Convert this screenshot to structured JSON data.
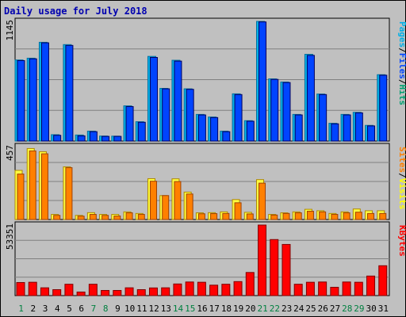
{
  "title": "Daily usage for July 2018",
  "colors": {
    "pages": "#00b0e8",
    "files": "#0044ff",
    "hits": "#00a070",
    "sites": "#ff8000",
    "visits": "#ffff00",
    "kbytes": "#ff0000",
    "weekend_day": "#008040",
    "weekday_day": "#000000"
  },
  "chart_data": [
    {
      "type": "bar",
      "name": "hits-files-pages",
      "ymax_label": "1145",
      "ylim": [
        0,
        1145
      ],
      "legend_right": [
        {
          "text": "Pages",
          "color": "#00b0e8"
        },
        {
          "text": "/",
          "color": "#000000"
        },
        {
          "text": "Files",
          "color": "#0044ff"
        },
        {
          "text": "/",
          "color": "#000000"
        },
        {
          "text": "Hits",
          "color": "#00a070"
        }
      ],
      "categories": [
        "1",
        "2",
        "3",
        "4",
        "5",
        "6",
        "7",
        "8",
        "9",
        "10",
        "11",
        "12",
        "13",
        "14",
        "15",
        "16",
        "17",
        "18",
        "19",
        "20",
        "21",
        "22",
        "23",
        "24",
        "25",
        "26",
        "27",
        "28",
        "29",
        "30",
        "31"
      ],
      "series": [
        {
          "name": "Hits",
          "values": [
            776,
            793,
            945,
            61,
            923,
            58,
            95,
            48,
            47,
            337,
            185,
            810,
            504,
            773,
            500,
            255,
            230,
            95,
            452,
            195,
            1145,
            595,
            565,
            255,
            830,
            450,
            170,
            255,
            275,
            150,
            635
          ]
        },
        {
          "name": "Files",
          "values": [
            770,
            787,
            940,
            55,
            915,
            50,
            90,
            45,
            45,
            330,
            180,
            800,
            500,
            765,
            495,
            250,
            225,
            90,
            445,
            190,
            1140,
            590,
            560,
            250,
            820,
            445,
            165,
            250,
            270,
            145,
            630
          ]
        }
      ]
    },
    {
      "type": "bar",
      "name": "visits-sites",
      "ymax_label": "457",
      "ylim": [
        0,
        457
      ],
      "legend_right": [
        {
          "text": "Sites",
          "color": "#ff8000"
        },
        {
          "text": "/",
          "color": "#000000"
        },
        {
          "text": "Visits",
          "color": "#ffff00"
        }
      ],
      "categories": [
        "1",
        "2",
        "3",
        "4",
        "5",
        "6",
        "7",
        "8",
        "9",
        "10",
        "11",
        "12",
        "13",
        "14",
        "15",
        "16",
        "17",
        "18",
        "19",
        "20",
        "21",
        "22",
        "23",
        "24",
        "25",
        "26",
        "27",
        "28",
        "29",
        "30",
        "31"
      ],
      "series": [
        {
          "name": "Visits",
          "values": [
            308,
            445,
            425,
            32,
            330,
            26,
            43,
            32,
            32,
            48,
            38,
            256,
            150,
            255,
            172,
            42,
            43,
            48,
            125,
            45,
            250,
            32,
            42,
            48,
            64,
            55,
            38,
            48,
            66,
            55,
            55
          ]
        },
        {
          "name": "Sites",
          "values": [
            285,
            430,
            412,
            26,
            325,
            21,
            32,
            26,
            22,
            42,
            32,
            240,
            150,
            238,
            160,
            36,
            37,
            38,
            105,
            35,
            228,
            28,
            38,
            42,
            52,
            48,
            32,
            42,
            46,
            38,
            38
          ]
        }
      ]
    },
    {
      "type": "bar",
      "name": "kbytes",
      "ymax_label": "53351",
      "ylim": [
        0,
        53351
      ],
      "legend_right": [
        {
          "text": "KBytes",
          "color": "#ff0000"
        }
      ],
      "categories": [
        "1",
        "2",
        "3",
        "4",
        "5",
        "6",
        "7",
        "8",
        "9",
        "10",
        "11",
        "12",
        "13",
        "14",
        "15",
        "16",
        "17",
        "18",
        "19",
        "20",
        "21",
        "22",
        "23",
        "24",
        "25",
        "26",
        "27",
        "28",
        "29",
        "30",
        "31"
      ],
      "series": [
        {
          "name": "KBytes",
          "values": [
            9900,
            10100,
            5900,
            4500,
            8600,
            2700,
            8600,
            3900,
            3900,
            5900,
            4500,
            5800,
            5900,
            8800,
            10300,
            10100,
            7900,
            8600,
            10600,
            17500,
            53351,
            42400,
            38700,
            8600,
            10100,
            10300,
            6300,
            10300,
            10100,
            14800,
            22600
          ]
        }
      ]
    }
  ],
  "days": [
    {
      "label": "1",
      "weekend": true
    },
    {
      "label": "2",
      "weekend": false
    },
    {
      "label": "3",
      "weekend": false
    },
    {
      "label": "4",
      "weekend": false
    },
    {
      "label": "5",
      "weekend": false
    },
    {
      "label": "6",
      "weekend": false
    },
    {
      "label": "7",
      "weekend": true
    },
    {
      "label": "8",
      "weekend": true
    },
    {
      "label": "9",
      "weekend": false
    },
    {
      "label": "10",
      "weekend": false
    },
    {
      "label": "11",
      "weekend": false
    },
    {
      "label": "12",
      "weekend": false
    },
    {
      "label": "13",
      "weekend": false
    },
    {
      "label": "14",
      "weekend": true
    },
    {
      "label": "15",
      "weekend": true
    },
    {
      "label": "16",
      "weekend": false
    },
    {
      "label": "17",
      "weekend": false
    },
    {
      "label": "18",
      "weekend": false
    },
    {
      "label": "19",
      "weekend": false
    },
    {
      "label": "20",
      "weekend": false
    },
    {
      "label": "21",
      "weekend": true
    },
    {
      "label": "22",
      "weekend": true
    },
    {
      "label": "23",
      "weekend": false
    },
    {
      "label": "24",
      "weekend": false
    },
    {
      "label": "25",
      "weekend": false
    },
    {
      "label": "26",
      "weekend": false
    },
    {
      "label": "27",
      "weekend": false
    },
    {
      "label": "28",
      "weekend": true
    },
    {
      "label": "29",
      "weekend": true
    },
    {
      "label": "30",
      "weekend": false
    },
    {
      "label": "31",
      "weekend": false
    }
  ]
}
